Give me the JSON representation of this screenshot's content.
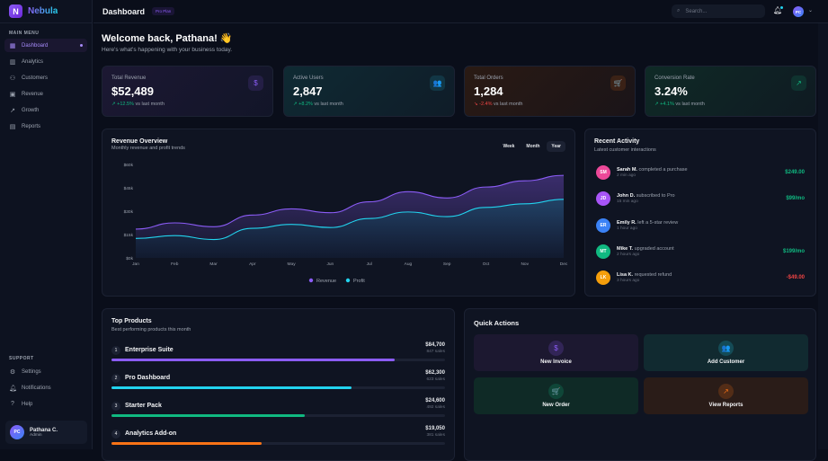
{
  "app": {
    "logo_letter": "N",
    "name": "Nebula"
  },
  "sidebar": {
    "main_label": "MAIN MENU",
    "items": [
      {
        "label": "Dashboard",
        "icon": "grid-icon"
      },
      {
        "label": "Analytics",
        "icon": "bar-chart-icon"
      },
      {
        "label": "Customers",
        "icon": "users-icon"
      },
      {
        "label": "Revenue",
        "icon": "wallet-icon"
      },
      {
        "label": "Growth",
        "icon": "trending-up-icon"
      },
      {
        "label": "Reports",
        "icon": "file-icon"
      }
    ],
    "support_label": "SUPPORT",
    "support": [
      {
        "label": "Settings",
        "icon": "gear-icon"
      },
      {
        "label": "Notifications",
        "icon": "bell-icon"
      },
      {
        "label": "Help",
        "icon": "help-icon"
      }
    ],
    "user": {
      "initials": "PC",
      "name": "Pathana C.",
      "role": "Admin"
    }
  },
  "header": {
    "title": "Dashboard",
    "badge": "Pro Plan",
    "search_placeholder": "Search...",
    "avatar": "PC"
  },
  "welcome": {
    "title": "Welcome back, Pathana! 👋",
    "subtitle": "Here's what's happening with your business today."
  },
  "stats": [
    {
      "label": "Total Revenue",
      "value": "$52,489",
      "change": "+12.5%",
      "suffix": "vs last month",
      "trend": "up",
      "icon": "$",
      "color": "#8b5cf6"
    },
    {
      "label": "Active Users",
      "value": "2,847",
      "change": "+8.2%",
      "suffix": "vs last month",
      "trend": "up",
      "icon": "👥",
      "color": "#22d3ee"
    },
    {
      "label": "Total Orders",
      "value": "1,284",
      "change": "-2.4%",
      "suffix": "vs last month",
      "trend": "down",
      "icon": "🛒",
      "color": "#f97316"
    },
    {
      "label": "Conversion Rate",
      "value": "3.24%",
      "change": "+4.1%",
      "suffix": "vs last month",
      "trend": "up",
      "icon": "↗",
      "color": "#10b981"
    }
  ],
  "chart": {
    "title": "Revenue Overview",
    "subtitle": "Monthly revenue and profit trends",
    "tabs": [
      "Week",
      "Month",
      "Year"
    ],
    "active_tab": "Year"
  },
  "chart_data": {
    "type": "area",
    "x": [
      "Jan",
      "Feb",
      "Mar",
      "Apr",
      "May",
      "Jun",
      "Jul",
      "Aug",
      "Sep",
      "Oct",
      "Nov",
      "Dec"
    ],
    "yticks": [
      "$0k",
      "$15k",
      "$30k",
      "$45k",
      "$60k"
    ],
    "ylim": [
      0,
      60000
    ],
    "series": [
      {
        "name": "Revenue",
        "color": "#8b5cf6",
        "values": [
          18500,
          22500,
          20000,
          27500,
          31500,
          29000,
          36000,
          42500,
          38500,
          45500,
          49500,
          53000
        ]
      },
      {
        "name": "Profit",
        "color": "#22d3ee",
        "values": [
          12500,
          14300,
          11800,
          19000,
          21500,
          19500,
          25300,
          29500,
          26500,
          32400,
          34700,
          37600
        ]
      }
    ],
    "legend": "bottom"
  },
  "activity": {
    "title": "Recent Activity",
    "subtitle": "Latest customer interactions",
    "items": [
      {
        "initials": "SM",
        "name": "Sarah M.",
        "action": "completed a purchase",
        "time": "2 min ago",
        "amount": "$249.00",
        "color": "#ec4899",
        "amount_color": "#10b981"
      },
      {
        "initials": "JD",
        "name": "John D.",
        "action": "subscribed to Pro",
        "time": "15 min ago",
        "amount": "$99/mo",
        "color": "#a855f7",
        "amount_color": "#10b981"
      },
      {
        "initials": "ER",
        "name": "Emily R.",
        "action": "left a 5-star review",
        "time": "1 hour ago",
        "amount": "",
        "color": "#3b82f6",
        "amount_color": "#10b981"
      },
      {
        "initials": "MT",
        "name": "Mike T.",
        "action": "upgraded account",
        "time": "2 hours ago",
        "amount": "$199/mo",
        "color": "#10b981",
        "amount_color": "#10b981"
      },
      {
        "initials": "LK",
        "name": "Lisa K.",
        "action": "requested refund",
        "time": "3 hours ago",
        "amount": "-$49.00",
        "color": "#f59e0b",
        "amount_color": "#ef4444"
      }
    ]
  },
  "products": {
    "title": "Top Products",
    "subtitle": "Best performing products this month",
    "items": [
      {
        "rank": "1",
        "name": "Enterprise Suite",
        "value": "$84,700",
        "sales": "847 sales",
        "pct": 85,
        "color": "#8b5cf6"
      },
      {
        "rank": "2",
        "name": "Pro Dashboard",
        "value": "$62,300",
        "sales": "623 sales",
        "pct": 72,
        "color": "#22d3ee"
      },
      {
        "rank": "3",
        "name": "Starter Pack",
        "value": "$24,600",
        "sales": "492 sales",
        "pct": 58,
        "color": "#10b981"
      },
      {
        "rank": "4",
        "name": "Analytics Add-on",
        "value": "$19,050",
        "sales": "381 sales",
        "pct": 45,
        "color": "#f97316"
      }
    ]
  },
  "quick_actions": {
    "title": "Quick Actions",
    "items": [
      {
        "label": "New Invoice",
        "icon": "$",
        "color": "#8b5cf6",
        "bg": "#1c1830"
      },
      {
        "label": "Add Customer",
        "icon": "👥",
        "color": "#22d3ee",
        "bg": "#112a30"
      },
      {
        "label": "New Order",
        "icon": "🛒",
        "color": "#10b981",
        "bg": "#0f2a26"
      },
      {
        "label": "View Reports",
        "icon": "↗",
        "color": "#f97316",
        "bg": "#2a1c18"
      }
    ]
  }
}
